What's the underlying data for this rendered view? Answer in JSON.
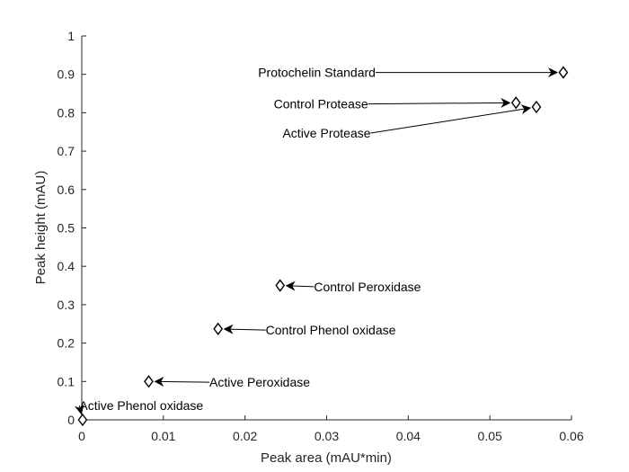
{
  "chart_data": {
    "type": "scatter",
    "title": "",
    "xlabel": "Peak area (mAU*min)",
    "ylabel": "Peak height (mAU)",
    "xlim": [
      0,
      0.06
    ],
    "ylim": [
      0,
      1
    ],
    "xticks": [
      0,
      0.01,
      0.02,
      0.03,
      0.04,
      0.05,
      0.06
    ],
    "xtick_labels": [
      "0",
      "0.01",
      "0.02",
      "0.03",
      "0.04",
      "0.05",
      "0.06"
    ],
    "yticks": [
      0,
      0.1,
      0.2,
      0.3,
      0.4,
      0.5,
      0.6,
      0.7,
      0.8,
      0.9,
      1
    ],
    "ytick_labels": [
      "0",
      "0.1",
      "0.2",
      "0.3",
      "0.4",
      "0.5",
      "0.6",
      "0.7",
      "0.8",
      "0.9",
      "1"
    ],
    "grid": false,
    "marker": "diamond",
    "marker_color": "#000000",
    "points": [
      {
        "label": "Protochelin Standard",
        "x": 0.059,
        "y": 0.905,
        "text_x": 0.0288,
        "text_y": 0.905
      },
      {
        "label": "Control Protease",
        "x": 0.0532,
        "y": 0.826,
        "text_x": 0.0293,
        "text_y": 0.823
      },
      {
        "label": "Active Protease",
        "x": 0.0557,
        "y": 0.815,
        "text_x": 0.03,
        "text_y": 0.747
      },
      {
        "label": "Control Peroxidase",
        "x": 0.0243,
        "y": 0.35,
        "text_x": 0.035,
        "text_y": 0.347
      },
      {
        "label": "Control Phenol oxidase",
        "x": 0.0167,
        "y": 0.237,
        "text_x": 0.0305,
        "text_y": 0.234
      },
      {
        "label": "Active Peroxidase",
        "x": 0.0082,
        "y": 0.1,
        "text_x": 0.0218,
        "text_y": 0.098
      },
      {
        "label": "Active Phenol oxidase",
        "x": 0.0001,
        "y": 0.0,
        "text_x": 0.0073,
        "text_y": 0.037
      }
    ]
  }
}
